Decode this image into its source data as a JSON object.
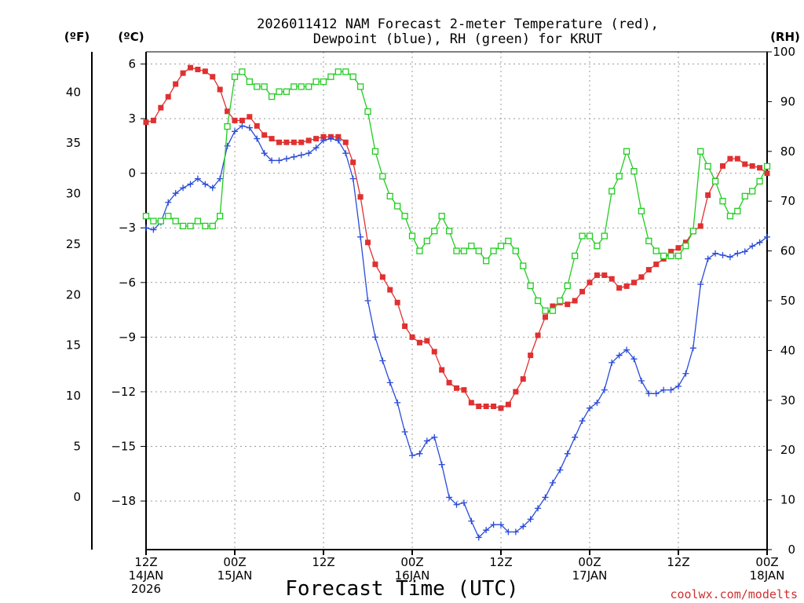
{
  "chart_data": {
    "type": "line",
    "title_line1": "2026011412 NAM Forecast 2-meter Temperature (red),",
    "title_line2": "Dewpoint (blue), RH (green) for KRUT",
    "xlabel": "Forecast Time (UTC)",
    "credit": "coolwx.com/modelts",
    "credit_color": "#d03030",
    "left_outer_unit": "(ºF)",
    "left_inner_unit": "(ºC)",
    "right_unit": "(RH)",
    "x_range_hours": [
      0,
      84
    ],
    "celsius_range": [
      -20.67,
      6.67
    ],
    "rh_range": [
      0,
      100
    ],
    "fahrenheit_ticks": [
      "40",
      "35",
      "30",
      "25",
      "20",
      "15",
      "10",
      "5",
      "0"
    ],
    "fahrenheit_values": [
      40,
      35,
      30,
      25,
      20,
      15,
      10,
      5,
      0
    ],
    "celsius_ticks": [
      "6",
      "3",
      "0",
      "−3",
      "−6",
      "−9",
      "−12",
      "−15",
      "−18"
    ],
    "celsius_values": [
      6,
      3,
      0,
      -3,
      -6,
      -9,
      -12,
      -15,
      -18
    ],
    "rh_ticks": [
      "100",
      "90",
      "80",
      "70",
      "60",
      "50",
      "40",
      "30",
      "20",
      "10",
      "0"
    ],
    "rh_values": [
      100,
      90,
      80,
      70,
      60,
      50,
      40,
      30,
      20,
      10,
      0
    ],
    "x_ticks": [
      {
        "hour": 0,
        "l1": "12Z",
        "l2": "14JAN",
        "l3": "2026"
      },
      {
        "hour": 12,
        "l1": "00Z",
        "l2": "15JAN",
        "l3": ""
      },
      {
        "hour": 24,
        "l1": "12Z",
        "l2": "",
        "l3": ""
      },
      {
        "hour": 36,
        "l1": "00Z",
        "l2": "16JAN",
        "l3": ""
      },
      {
        "hour": 48,
        "l1": "12Z",
        "l2": "",
        "l3": ""
      },
      {
        "hour": 60,
        "l1": "00Z",
        "l2": "17JAN",
        "l3": ""
      },
      {
        "hour": 72,
        "l1": "12Z",
        "l2": "",
        "l3": ""
      },
      {
        "hour": 84,
        "l1": "00Z",
        "l2": "18JAN",
        "l3": ""
      }
    ],
    "series": [
      {
        "name": "2-meter Temperature",
        "units": "C",
        "color": "#e03030",
        "marker": "square",
        "x": [
          0,
          1,
          2,
          3,
          4,
          5,
          6,
          7,
          8,
          9,
          10,
          11,
          12,
          13,
          14,
          15,
          16,
          17,
          18,
          19,
          20,
          21,
          22,
          23,
          24,
          25,
          26,
          27,
          28,
          29,
          30,
          31,
          32,
          33,
          34,
          35,
          36,
          37,
          38,
          39,
          40,
          41,
          42,
          43,
          44,
          45,
          46,
          47,
          48,
          49,
          50,
          51,
          52,
          53,
          54,
          55,
          56,
          57,
          58,
          59,
          60,
          61,
          62,
          63,
          64,
          65,
          66,
          67,
          68,
          69,
          70,
          71,
          72,
          73,
          74,
          75,
          76,
          77,
          78,
          79,
          80,
          81,
          82,
          83,
          84
        ],
        "values": [
          2.8,
          2.9,
          3.6,
          4.2,
          4.9,
          5.5,
          5.8,
          5.7,
          5.6,
          5.3,
          4.6,
          3.4,
          2.9,
          2.9,
          3.1,
          2.6,
          2.1,
          1.9,
          1.7,
          1.7,
          1.7,
          1.7,
          1.8,
          1.9,
          2.0,
          2.0,
          2.0,
          1.7,
          0.6,
          -1.3,
          -3.8,
          -5.0,
          -5.7,
          -6.4,
          -7.1,
          -8.4,
          -9.0,
          -9.3,
          -9.2,
          -9.8,
          -10.8,
          -11.5,
          -11.8,
          -11.9,
          -12.6,
          -12.8,
          -12.8,
          -12.8,
          -12.9,
          -12.7,
          -12.0,
          -11.3,
          -10.0,
          -8.9,
          -7.9,
          -7.3,
          -7.1,
          -7.2,
          -7.0,
          -6.5,
          -6.0,
          -5.6,
          -5.6,
          -5.8,
          -6.3,
          -6.2,
          -6.0,
          -5.7,
          -5.3,
          -5.0,
          -4.7,
          -4.3,
          -4.1,
          -3.8,
          -3.2,
          -2.9,
          -1.2,
          -0.4,
          0.4,
          0.8,
          0.8,
          0.5,
          0.4,
          0.3,
          0.0
        ]
      },
      {
        "name": "Dewpoint",
        "units": "C",
        "color": "#2a4bd8",
        "marker": "plus",
        "x": [
          0,
          1,
          2,
          3,
          4,
          5,
          6,
          7,
          8,
          9,
          10,
          11,
          12,
          13,
          14,
          15,
          16,
          17,
          18,
          19,
          20,
          21,
          22,
          23,
          24,
          25,
          26,
          27,
          28,
          29,
          30,
          31,
          32,
          33,
          34,
          35,
          36,
          37,
          38,
          39,
          40,
          41,
          42,
          43,
          44,
          45,
          46,
          47,
          48,
          49,
          50,
          51,
          52,
          53,
          54,
          55,
          56,
          57,
          58,
          59,
          60,
          61,
          62,
          63,
          64,
          65,
          66,
          67,
          68,
          69,
          70,
          71,
          72,
          73,
          74,
          75,
          76,
          77,
          78,
          79,
          80,
          81,
          82,
          83,
          84
        ],
        "values": [
          -3.0,
          -3.1,
          -2.7,
          -1.6,
          -1.1,
          -0.8,
          -0.6,
          -0.3,
          -0.6,
          -0.8,
          -0.3,
          1.5,
          2.3,
          2.6,
          2.5,
          1.9,
          1.1,
          0.7,
          0.7,
          0.8,
          0.9,
          1.0,
          1.1,
          1.4,
          1.8,
          1.9,
          1.8,
          1.1,
          -0.3,
          -3.5,
          -7.0,
          -9.0,
          -10.3,
          -11.5,
          -12.6,
          -14.2,
          -15.5,
          -15.4,
          -14.7,
          -14.5,
          -16.0,
          -17.8,
          -18.2,
          -18.1,
          -19.1,
          -20.0,
          -19.6,
          -19.3,
          -19.3,
          -19.7,
          -19.7,
          -19.4,
          -19.0,
          -18.4,
          -17.8,
          -17.0,
          -16.3,
          -15.4,
          -14.5,
          -13.6,
          -12.9,
          -12.6,
          -11.9,
          -10.4,
          -10.0,
          -9.7,
          -10.2,
          -11.4,
          -12.1,
          -12.1,
          -11.9,
          -11.9,
          -11.7,
          -11.0,
          -9.6,
          -6.1,
          -4.7,
          -4.4,
          -4.5,
          -4.6,
          -4.4,
          -4.3,
          -4.0,
          -3.8,
          -3.5
        ]
      },
      {
        "name": "RH",
        "units": "%",
        "color": "#22cc22",
        "marker": "open-square",
        "x": [
          0,
          1,
          2,
          3,
          4,
          5,
          6,
          7,
          8,
          9,
          10,
          11,
          12,
          13,
          14,
          15,
          16,
          17,
          18,
          19,
          20,
          21,
          22,
          23,
          24,
          25,
          26,
          27,
          28,
          29,
          30,
          31,
          32,
          33,
          34,
          35,
          36,
          37,
          38,
          39,
          40,
          41,
          42,
          43,
          44,
          45,
          46,
          47,
          48,
          49,
          50,
          51,
          52,
          53,
          54,
          55,
          56,
          57,
          58,
          59,
          60,
          61,
          62,
          63,
          64,
          65,
          66,
          67,
          68,
          69,
          70,
          71,
          72,
          73,
          74,
          75,
          76,
          77,
          78,
          79,
          80,
          81,
          82,
          83,
          84
        ],
        "values": [
          67,
          66,
          66,
          67,
          66,
          65,
          65,
          66,
          65,
          65,
          67,
          85,
          95,
          96,
          94,
          93,
          93,
          91,
          92,
          92,
          93,
          93,
          93,
          94,
          94,
          95,
          96,
          96,
          95,
          93,
          88,
          80,
          75,
          71,
          69,
          67,
          63,
          60,
          62,
          64,
          67,
          64,
          60,
          60,
          61,
          60,
          58,
          60,
          61,
          62,
          60,
          57,
          53,
          50,
          48,
          48,
          50,
          53,
          59,
          63,
          63,
          61,
          63,
          72,
          75,
          80,
          76,
          68,
          62,
          60,
          59,
          59,
          59,
          61,
          64,
          80,
          77,
          74,
          70,
          67,
          68,
          71,
          72,
          74,
          77
        ]
      }
    ]
  }
}
